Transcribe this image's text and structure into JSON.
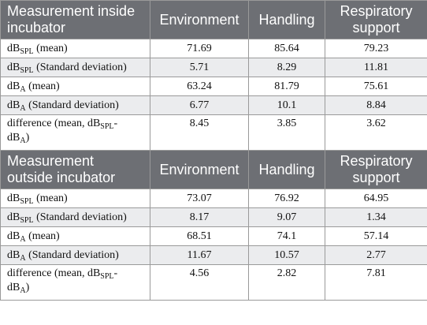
{
  "sections": [
    {
      "title": "Measurement inside incubator",
      "columns": [
        "Environment",
        "Handling",
        "Respiratory support"
      ],
      "rows": [
        {
          "label_main": "dB",
          "label_sub": "SPL",
          "label_tail": " (mean)",
          "values": [
            "71.69",
            "85.64",
            "79.23"
          ]
        },
        {
          "label_main": "dB",
          "label_sub": "SPL",
          "label_tail": " (Standard deviation)",
          "values": [
            "5.71",
            "8.29",
            "11.81"
          ]
        },
        {
          "label_main": "dB",
          "label_sub": "A",
          "label_tail": " (mean)",
          "values": [
            "63.24",
            "81.79",
            "75.61"
          ]
        },
        {
          "label_main": "dB",
          "label_sub": "A",
          "label_tail": " (Standard deviation)",
          "values": [
            "6.77",
            "10.1",
            "8.84"
          ]
        },
        {
          "label_main": "difference (mean, dB",
          "label_sub": "SPL",
          "label_tail": "-",
          "label_line2_main": "dB",
          "label_line2_sub": "A",
          "label_line2_tail": ")",
          "values": [
            "8.45",
            "3.85",
            "3.62"
          ]
        }
      ]
    },
    {
      "title": "Measurement outside incubator",
      "columns": [
        "Environment",
        "Handling",
        "Respiratory support"
      ],
      "rows": [
        {
          "label_main": "dB",
          "label_sub": "SPL",
          "label_tail": " (mean)",
          "values": [
            "73.07",
            "76.92",
            "64.95"
          ]
        },
        {
          "label_main": "dB",
          "label_sub": "SPL",
          "label_tail": " (Standard deviation)",
          "values": [
            "8.17",
            "9.07",
            "1.34"
          ]
        },
        {
          "label_main": "dB",
          "label_sub": "A",
          "label_tail": " (mean)",
          "values": [
            "68.51",
            "74.1",
            "57.14"
          ]
        },
        {
          "label_main": "dB",
          "label_sub": "A",
          "label_tail": " (Standard deviation)",
          "values": [
            "11.67",
            "10.57",
            "2.77"
          ]
        },
        {
          "label_main": "difference (mean, dB",
          "label_sub": "SPL",
          "label_tail": "-",
          "label_line2_main": "dB",
          "label_line2_sub": "A",
          "label_line2_tail": ")",
          "values": [
            "4.56",
            "2.82",
            "7.81"
          ]
        }
      ]
    }
  ],
  "colors": {
    "header_bg": "#6d6f74",
    "header_text": "#ffffff",
    "stripe_bg": "#ebecee",
    "border": "#9a9a9a"
  }
}
